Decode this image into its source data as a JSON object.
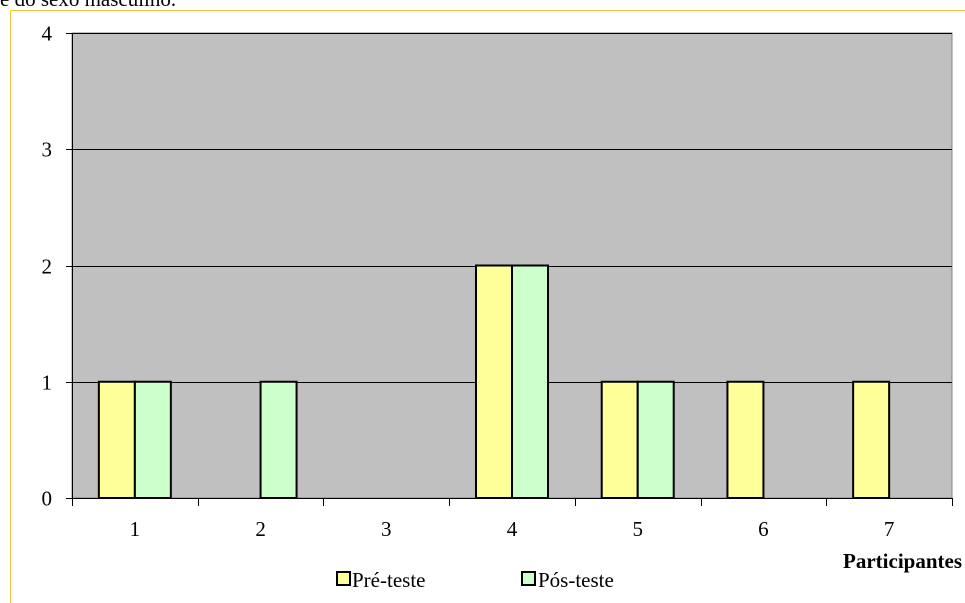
{
  "caption_fragment": "e do sexo masculino.",
  "colors": {
    "plot_background": "#c0c0c0",
    "frame_border": "#f5c542",
    "gridline": "#000000",
    "series_pre": "#ffff99",
    "series_pos": "#ccffcc",
    "bar_stroke": "#000000"
  },
  "chart_data": {
    "type": "bar",
    "title": "",
    "xlabel": "Participantes",
    "ylabel": "",
    "ylim": [
      0,
      4
    ],
    "yticks": [
      "0",
      "1",
      "2",
      "3",
      "4"
    ],
    "categories": [
      "1",
      "2",
      "3",
      "4",
      "5",
      "6",
      "7"
    ],
    "grid": true,
    "legend_position": "bottom",
    "series": [
      {
        "name": "Pré-teste",
        "values": [
          1,
          0,
          0,
          2,
          1,
          1,
          1
        ]
      },
      {
        "name": "Pós-teste",
        "values": [
          1,
          1,
          0,
          2,
          1,
          0,
          0
        ]
      }
    ]
  }
}
